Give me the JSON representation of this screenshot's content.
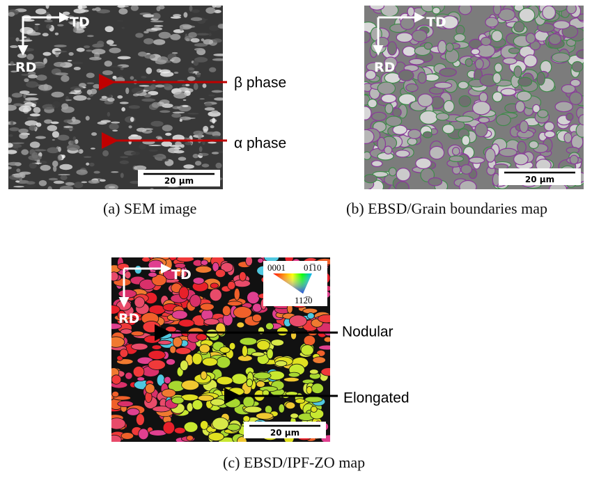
{
  "figure": {
    "panels": [
      {
        "caption": "(a) SEM image",
        "directions": {
          "horizontal": "TD",
          "vertical": "RD"
        },
        "annotations": [
          "β phase",
          "α phase"
        ],
        "scale_bar": "20 µm"
      },
      {
        "caption": "(b) EBSD/Grain boundaries map",
        "directions": {
          "horizontal": "TD",
          "vertical": "RD"
        },
        "scale_bar": "20 µm"
      },
      {
        "caption": "(c) EBSD/IPF-ZO map",
        "directions": {
          "horizontal": "TD",
          "vertical": "RD"
        },
        "annotations": [
          "Nodular",
          "Elongated"
        ],
        "scale_bar": "20 µm",
        "ipf_key": [
          "0001",
          "01̅10",
          "112̅0"
        ]
      }
    ]
  }
}
